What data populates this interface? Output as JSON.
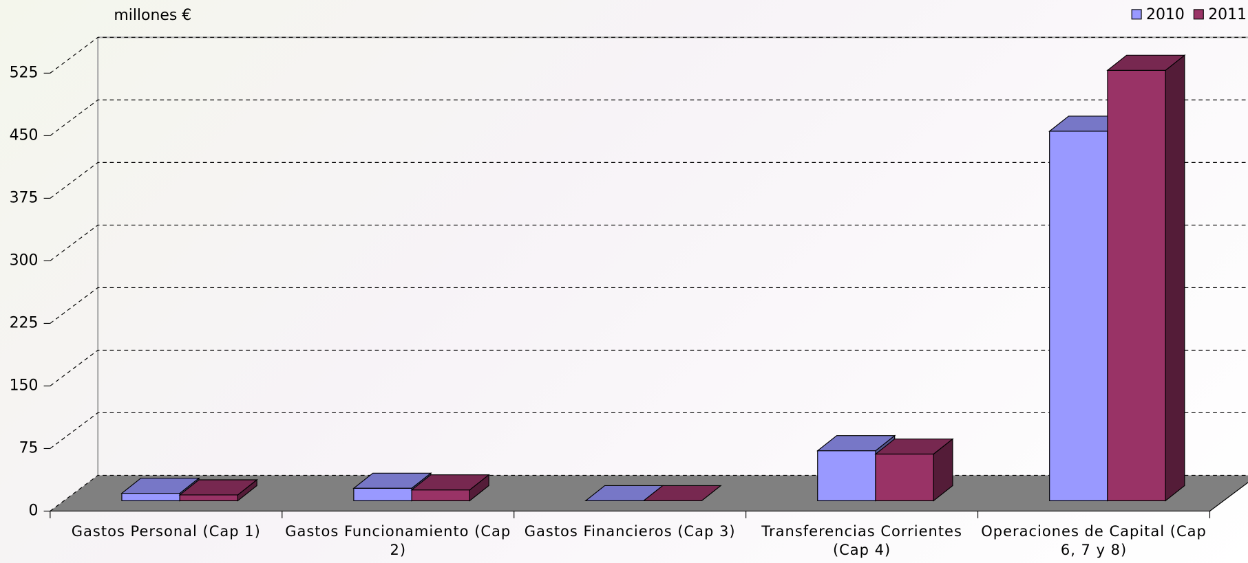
{
  "chart_data": {
    "type": "bar3d",
    "y_axis_label": "millones €",
    "categories": [
      "Gastos Personal (Cap 1)",
      "Gastos Funcionamiento (Cap 2)",
      "Gastos Financieros (Cap 3)",
      "Transferencias Corrientes (Cap 4)",
      "Operaciones de Capital (Cap 6, 7 y 8)"
    ],
    "series": [
      {
        "name": "2010",
        "color": "#9999ff",
        "values": [
          9,
          15,
          0,
          60,
          443
        ]
      },
      {
        "name": "2011",
        "color": "#993366",
        "values": [
          7,
          13,
          0,
          56,
          516
        ]
      }
    ],
    "ylim": [
      0,
      525
    ],
    "yticks": [
      0,
      75,
      150,
      225,
      300,
      375,
      450,
      525
    ],
    "grid": true,
    "legend": "top-right"
  }
}
